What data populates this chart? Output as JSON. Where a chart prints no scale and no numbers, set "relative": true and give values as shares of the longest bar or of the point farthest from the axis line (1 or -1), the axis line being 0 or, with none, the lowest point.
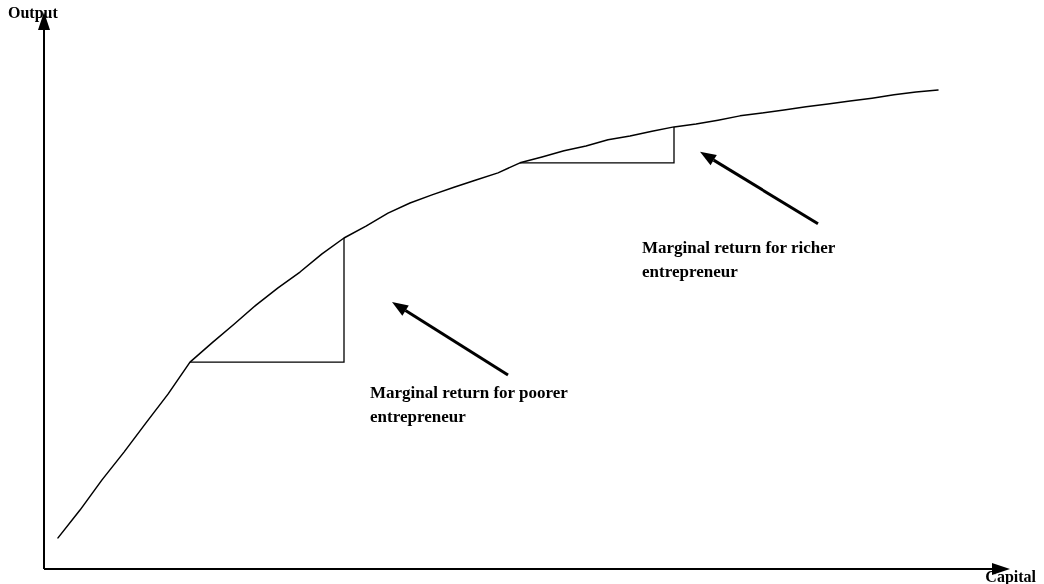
{
  "chart_data": {
    "type": "line",
    "relative": true,
    "xlabel": "Capital",
    "ylabel": "Output",
    "categories": [
      null,
      null,
      null,
      null,
      null,
      null,
      null,
      null,
      null,
      null,
      null,
      null,
      null,
      null,
      null,
      null,
      null,
      null,
      null,
      null,
      null,
      null,
      null,
      null,
      null,
      null,
      null,
      null,
      null,
      null,
      null,
      null,
      null,
      null,
      null,
      null,
      null,
      null,
      null,
      null,
      null
    ],
    "series": [
      {
        "color": "#000000",
        "values": [
          0.065,
          0.123,
          0.186,
          0.244,
          0.305,
          0.365,
          0.432,
          0.472,
          0.511,
          0.551,
          0.587,
          0.62,
          0.658,
          0.691,
          0.716,
          0.743,
          0.764,
          0.781,
          0.797,
          0.812,
          0.827,
          0.848,
          0.86,
          0.873,
          0.883,
          0.896,
          0.904,
          0.914,
          0.923,
          0.929,
          0.937,
          0.946,
          0.952,
          0.958,
          0.965,
          0.971,
          0.977,
          0.983,
          0.99,
          0.996,
          1.0
        ]
      }
    ],
    "annotations": [
      "Marginal return for poorer entrepreneur",
      "Marginal return for richer entrepreneur"
    ]
  }
}
